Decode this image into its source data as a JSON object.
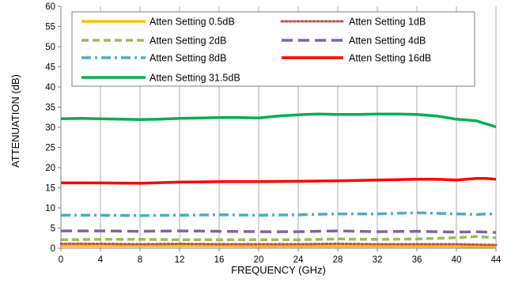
{
  "chart_data": {
    "type": "line",
    "title": "",
    "xlabel": "FREQUENCY (GHz)",
    "ylabel": "ATTENUATION (dB)",
    "xlim": [
      0,
      44
    ],
    "ylim": [
      0,
      60
    ],
    "xticks": [
      0,
      4,
      8,
      12,
      16,
      20,
      24,
      28,
      32,
      36,
      40,
      44
    ],
    "yticks": [
      0,
      5,
      10,
      15,
      20,
      25,
      30,
      35,
      40,
      45,
      50,
      55,
      60
    ],
    "grid": "vertical",
    "legend_placement": "top",
    "series": [
      {
        "name": "Atten Setting 0.5dB",
        "color": "#FFC000",
        "dash": "solid",
        "x": [
          0,
          4,
          8,
          12,
          16,
          20,
          24,
          28,
          32,
          36,
          40,
          42,
          44
        ],
        "y": [
          0.6,
          0.6,
          0.6,
          0.6,
          0.6,
          0.5,
          0.5,
          0.5,
          0.5,
          0.5,
          0.5,
          0.4,
          0.4
        ]
      },
      {
        "name": "Atten Setting 1dB",
        "color": "#C0504D",
        "dash": "dotted",
        "x": [
          0,
          4,
          8,
          12,
          16,
          20,
          24,
          28,
          32,
          36,
          40,
          42,
          44
        ],
        "y": [
          1.1,
          1.1,
          1.0,
          1.1,
          1.0,
          1.0,
          1.0,
          1.1,
          1.0,
          1.0,
          1.0,
          0.9,
          0.8
        ]
      },
      {
        "name": "Atten Setting 2dB",
        "color": "#9BBB59",
        "dash": "dash",
        "x": [
          0,
          4,
          8,
          12,
          16,
          20,
          24,
          28,
          32,
          36,
          40,
          42,
          44
        ],
        "y": [
          2.1,
          2.2,
          2.2,
          2.1,
          2.1,
          2.1,
          2.1,
          2.3,
          2.2,
          2.3,
          2.6,
          2.9,
          2.6
        ]
      },
      {
        "name": "Atten Setting 4dB",
        "color": "#8064A2",
        "dash": "longdash",
        "x": [
          0,
          4,
          8,
          12,
          16,
          20,
          24,
          28,
          32,
          36,
          40,
          42,
          44
        ],
        "y": [
          4.3,
          4.3,
          4.2,
          4.3,
          4.2,
          4.1,
          4.1,
          4.3,
          4.1,
          4.2,
          4.0,
          4.1,
          3.9
        ]
      },
      {
        "name": "Atten Setting 8dB",
        "color": "#4BACC6",
        "dash": "dashdot",
        "x": [
          0,
          4,
          8,
          12,
          16,
          20,
          24,
          28,
          32,
          36,
          40,
          42,
          44
        ],
        "y": [
          8.2,
          8.2,
          8.1,
          8.2,
          8.3,
          8.2,
          8.3,
          8.5,
          8.5,
          8.8,
          8.5,
          8.4,
          8.5
        ]
      },
      {
        "name": "Atten Setting 16dB",
        "color": "#FF0000",
        "dash": "solid",
        "x": [
          0,
          4,
          8,
          12,
          16,
          20,
          24,
          28,
          32,
          36,
          38,
          40,
          42,
          43,
          44
        ],
        "y": [
          16.2,
          16.2,
          16.1,
          16.4,
          16.5,
          16.5,
          16.6,
          16.7,
          16.9,
          17.1,
          17.1,
          16.9,
          17.3,
          17.3,
          17.1
        ]
      },
      {
        "name": "Atten Setting 31.5dB",
        "color": "#00B050",
        "dash": "solid",
        "x": [
          0,
          2,
          4,
          6,
          8,
          10,
          12,
          14,
          16,
          18,
          20,
          22,
          24,
          26,
          28,
          30,
          32,
          34,
          36,
          38,
          40,
          42,
          44
        ],
        "y": [
          32.1,
          32.2,
          32.1,
          32.0,
          31.9,
          32.0,
          32.2,
          32.3,
          32.4,
          32.4,
          32.3,
          32.8,
          33.1,
          33.3,
          33.2,
          33.2,
          33.3,
          33.3,
          33.2,
          32.8,
          32.0,
          31.6,
          30.1
        ]
      }
    ]
  }
}
